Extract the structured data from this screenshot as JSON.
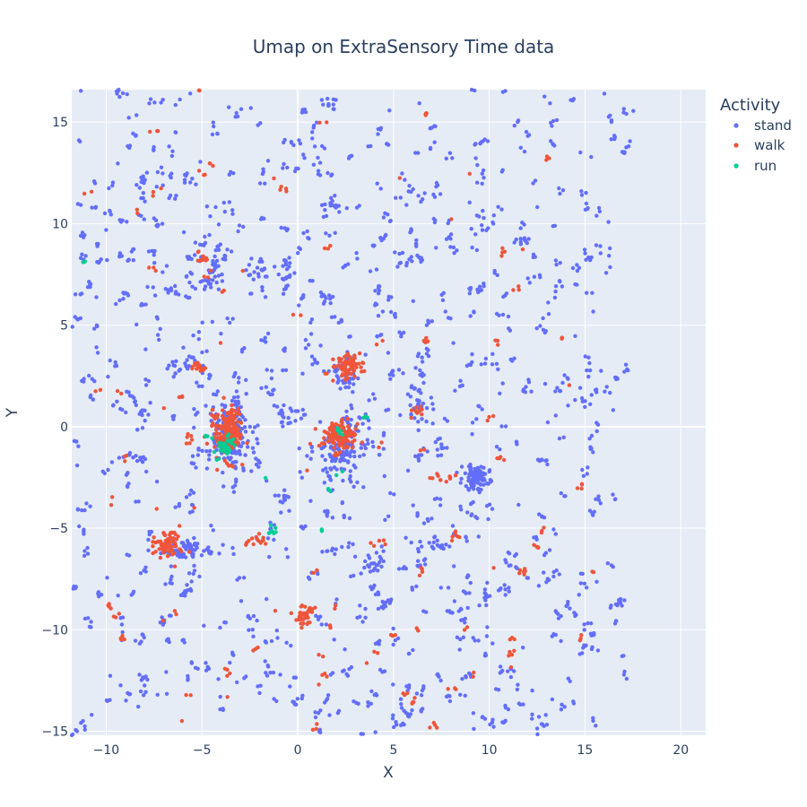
{
  "chart_data": {
    "type": "scatter",
    "title": "Umap on ExtraSensory   Time data",
    "xlabel": "X",
    "ylabel": "Y",
    "xlim": [
      -11.8,
      21.3
    ],
    "ylim": [
      -15.2,
      16.6
    ],
    "xticks": [
      -10,
      -5,
      0,
      5,
      10,
      15,
      20
    ],
    "yticks": [
      -15,
      -10,
      -5,
      0,
      5,
      10,
      15
    ],
    "grid": true,
    "legend": {
      "title": "Activity",
      "placement": "top-right"
    },
    "series": [
      {
        "name": "stand",
        "color": "#636efa",
        "clusters": [
          {
            "center": [
              -3.5,
              -0.5
            ],
            "spread": [
              1.0,
              1.6
            ],
            "count": 180
          },
          {
            "center": [
              2.3,
              -1.2
            ],
            "spread": [
              1.2,
              1.0
            ],
            "count": 120
          },
          {
            "center": [
              9.3,
              -2.5
            ],
            "spread": [
              0.6,
              0.5
            ],
            "count": 90
          },
          {
            "center": [
              -5.7,
              -6.1
            ],
            "spread": [
              1.6,
              0.4
            ],
            "count": 60
          },
          {
            "center": [
              2.5,
              2.6
            ],
            "spread": [
              0.9,
              0.7
            ],
            "count": 40
          },
          {
            "center": [
              -4.3,
              7.8
            ],
            "spread": [
              0.5,
              0.8
            ],
            "count": 25
          },
          {
            "center": [
              -2.0,
              7.5
            ],
            "spread": [
              0.6,
              0.6
            ],
            "count": 20
          },
          {
            "center": [
              -0.6,
              7.5
            ],
            "spread": [
              0.3,
              0.6
            ],
            "count": 20
          },
          {
            "center": [
              1.8,
              10.9
            ],
            "spread": [
              0.6,
              0.3
            ],
            "count": 15
          },
          {
            "center": [
              -8.2,
              12.0
            ],
            "spread": [
              0.3,
              0.3
            ],
            "count": 10
          },
          {
            "center": [
              -6.6,
              6.7
            ],
            "spread": [
              0.4,
              0.2
            ],
            "count": 10
          },
          {
            "center": [
              6.4,
              1.0
            ],
            "spread": [
              0.7,
              0.7
            ],
            "count": 30
          },
          {
            "center": [
              -8.6,
              -1.6
            ],
            "spread": [
              0.7,
              0.3
            ],
            "count": 15
          },
          {
            "center": [
              -6.3,
              2.9
            ],
            "spread": [
              0.6,
              0.4
            ],
            "count": 15
          },
          {
            "center": [
              3.9,
              -6.8
            ],
            "spread": [
              0.5,
              0.4
            ],
            "count": 20
          },
          {
            "center": [
              7.2,
              -5.8
            ],
            "spread": [
              0.6,
              0.3
            ],
            "count": 15
          },
          {
            "center": [
              11.1,
              -6.8
            ],
            "spread": [
              0.5,
              0.5
            ],
            "count": 10
          },
          {
            "center": [
              -0.3,
              0.6
            ],
            "spread": [
              0.9,
              0.4
            ],
            "count": 20
          },
          {
            "center": [
              9.8,
              -8.4
            ],
            "spread": [
              0.4,
              0.4
            ],
            "count": 10
          }
        ],
        "scatter": {
          "xrange": [
            -11.8,
            17.2
          ],
          "yrange": [
            -15.2,
            16.6
          ],
          "count": 700
        }
      },
      {
        "name": "walk",
        "color": "#ef553b",
        "clusters": [
          {
            "center": [
              -3.6,
              -0.3
            ],
            "spread": [
              0.6,
              1.1
            ],
            "count": 160
          },
          {
            "center": [
              2.2,
              -0.4
            ],
            "spread": [
              0.8,
              0.5
            ],
            "count": 120
          },
          {
            "center": [
              2.6,
              3.0
            ],
            "spread": [
              0.7,
              0.5
            ],
            "count": 70
          },
          {
            "center": [
              -6.8,
              -5.8
            ],
            "spread": [
              0.7,
              0.5
            ],
            "count": 60
          },
          {
            "center": [
              0.3,
              -9.3
            ],
            "spread": [
              0.4,
              0.4
            ],
            "count": 35
          },
          {
            "center": [
              -5.2,
              2.9
            ],
            "spread": [
              0.3,
              0.2
            ],
            "count": 15
          },
          {
            "center": [
              -2.3,
              -5.6
            ],
            "spread": [
              0.6,
              0.3
            ],
            "count": 15
          },
          {
            "center": [
              7.6,
              -2.5
            ],
            "spread": [
              0.6,
              0.2
            ],
            "count": 10
          },
          {
            "center": [
              6.2,
              0.8
            ],
            "spread": [
              0.4,
              0.3
            ],
            "count": 10
          },
          {
            "center": [
              -5.0,
              8.2
            ],
            "spread": [
              0.2,
              0.3
            ],
            "count": 8
          },
          {
            "center": [
              11.8,
              -7.1
            ],
            "spread": [
              0.2,
              0.2
            ],
            "count": 6
          },
          {
            "center": [
              8.3,
              -5.3
            ],
            "spread": [
              0.3,
              0.2
            ],
            "count": 6
          }
        ],
        "scatter": {
          "xrange": [
            -11.0,
            16.0
          ],
          "yrange": [
            -15.0,
            16.6
          ],
          "count": 90
        }
      },
      {
        "name": "run",
        "color": "#00cc96",
        "clusters": [
          {
            "center": [
              -3.8,
              -1.0
            ],
            "spread": [
              0.4,
              0.5
            ],
            "count": 30
          },
          {
            "center": [
              -1.4,
              -5.1
            ],
            "spread": [
              0.3,
              0.2
            ],
            "count": 8
          },
          {
            "center": [
              2.2,
              -0.2
            ],
            "spread": [
              0.2,
              0.3
            ],
            "count": 6
          },
          {
            "center": [
              -11.2,
              8.1
            ],
            "spread": [
              0.1,
              0.05
            ],
            "count": 3
          },
          {
            "center": [
              1.3,
              -5.1
            ],
            "spread": [
              0.1,
              0.05
            ],
            "count": 2
          },
          {
            "center": [
              -4.8,
              -0.4
            ],
            "spread": [
              0.2,
              0.2
            ],
            "count": 4
          }
        ],
        "scatter": {
          "xrange": [
            -6,
            4
          ],
          "yrange": [
            -6,
            1
          ],
          "count": 4
        }
      }
    ]
  }
}
